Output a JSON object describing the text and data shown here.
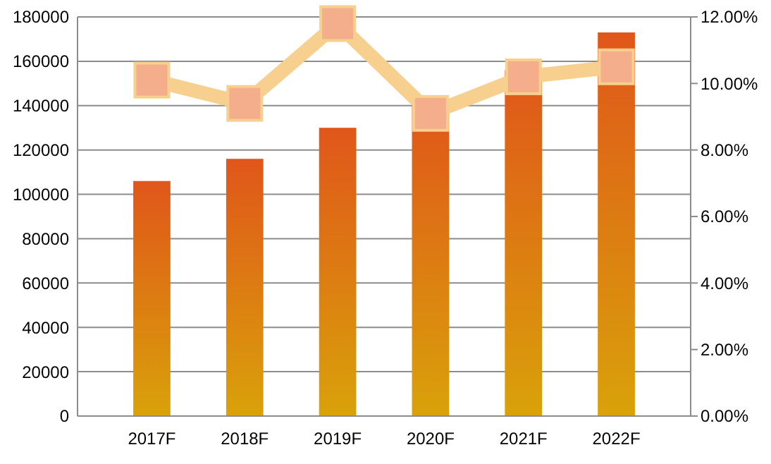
{
  "chart_data": {
    "type": "bar",
    "categories": [
      "2017F",
      "2018F",
      "2019F",
      "2020F",
      "2021F",
      "2022F"
    ],
    "series": [
      {
        "color": "#e0561a",
        "values": [
          106000,
          116000,
          130000,
          140000,
          156000,
          173000
        ]
      },
      {
        "type": "line",
        "axis": "y2",
        "color": "#f7cf8e",
        "marker": "square",
        "values": [
          10.1,
          9.4,
          11.8,
          9.1,
          10.2,
          10.5
        ]
      }
    ],
    "ylim": [
      0,
      180000
    ],
    "yticks": [
      0,
      20000,
      40000,
      60000,
      80000,
      100000,
      120000,
      140000,
      160000,
      180000
    ],
    "y2lim": [
      0,
      12
    ],
    "y2ticks": [
      {
        "value": 0,
        "label": "0.00%"
      },
      {
        "value": 2,
        "label": "2.00%"
      },
      {
        "value": 4,
        "label": "4.00%"
      },
      {
        "value": 6,
        "label": "6.00%"
      },
      {
        "value": 8,
        "label": "8.00%"
      },
      {
        "value": 10,
        "label": "10.00%"
      },
      {
        "value": 12,
        "label": "12.00%"
      }
    ],
    "grid": "y"
  }
}
